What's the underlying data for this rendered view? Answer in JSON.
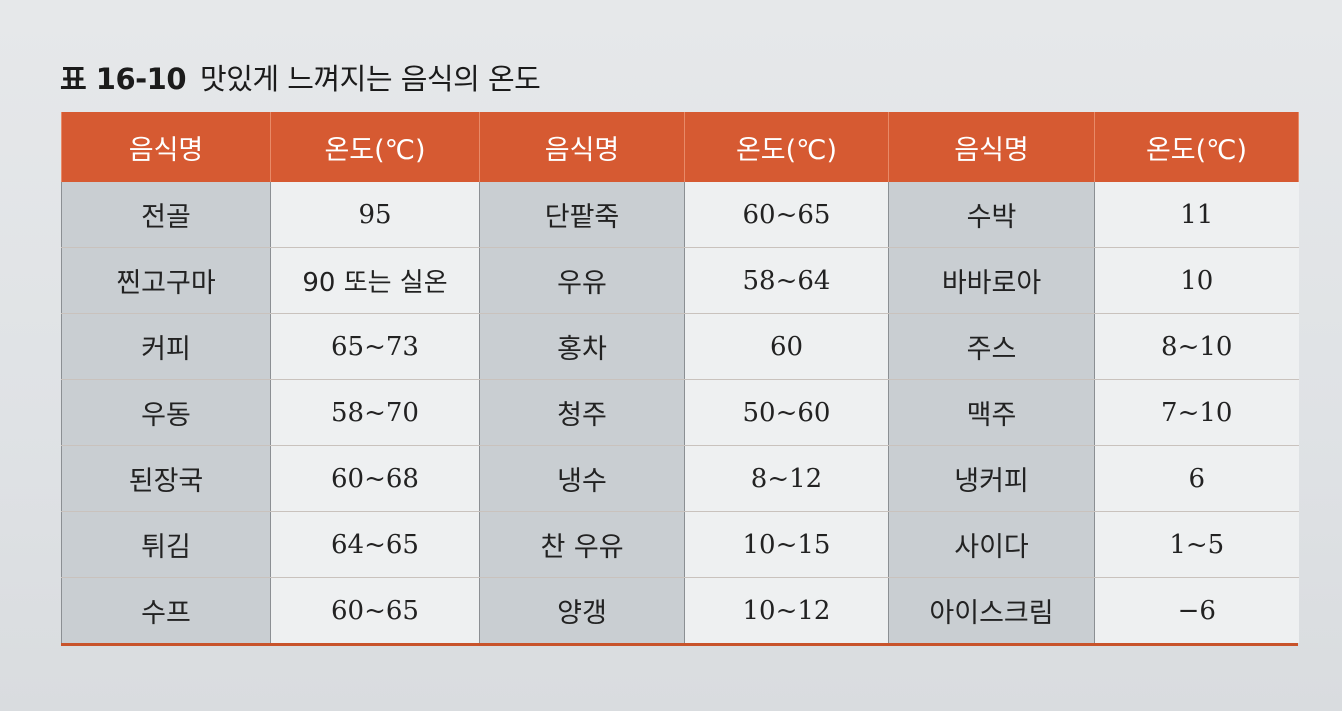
{
  "caption": {
    "label": "표 16-10",
    "title": "맛있게 느껴지는 음식의 온도"
  },
  "table": {
    "headers": [
      "음식명",
      "온도(℃)",
      "음식명",
      "온도(℃)",
      "음식명",
      "온도(℃)"
    ],
    "rows": [
      [
        "전골",
        "95",
        "단팥죽",
        "60~65",
        "수박",
        "11"
      ],
      [
        "찐고구마",
        "90 또는 실온",
        "우유",
        "58~64",
        "바바로아",
        "10"
      ],
      [
        "커피",
        "65~73",
        "홍차",
        "60",
        "주스",
        "8~10"
      ],
      [
        "우동",
        "58~70",
        "청주",
        "50~60",
        "맥주",
        "7~10"
      ],
      [
        "된장국",
        "60~68",
        "냉수",
        "8~12",
        "냉커피",
        "6"
      ],
      [
        "튀김",
        "64~65",
        "찬 우유",
        "10~15",
        "사이다",
        "1~5"
      ],
      [
        "수프",
        "60~65",
        "양갱",
        "10~12",
        "아이스크림",
        "−6"
      ]
    ]
  },
  "colors": {
    "header_bg": "#d65a32",
    "name_cell_bg": "#c9ced2",
    "temp_cell_bg": "#eef0f1"
  }
}
